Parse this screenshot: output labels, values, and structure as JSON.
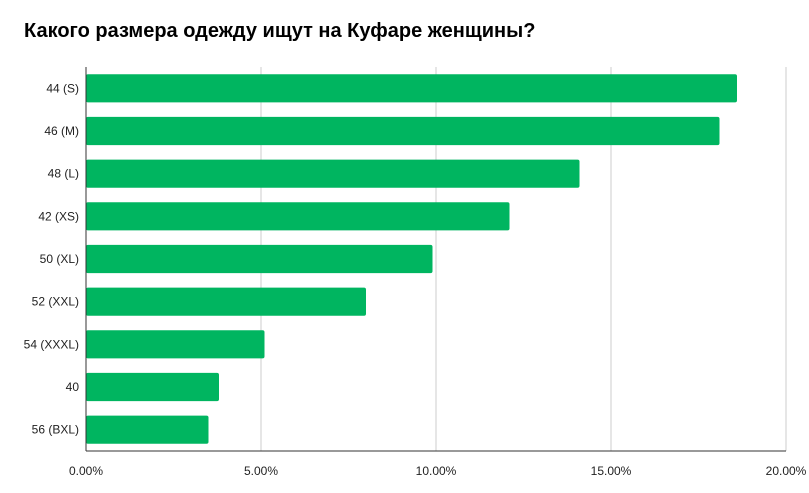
{
  "chart_data": {
    "type": "bar",
    "orientation": "horizontal",
    "title": "Какого размера одежду ищут на Куфаре женщины?",
    "categories": [
      "44 (S)",
      "46 (M)",
      "48 (L)",
      "42 (XS)",
      "50 (XL)",
      "52 (XXL)",
      "54 (XXXL)",
      "40",
      "56 (BXL)"
    ],
    "values": [
      18.6,
      18.1,
      14.1,
      12.1,
      9.9,
      8.0,
      5.1,
      3.8,
      3.5
    ],
    "xlim": [
      0,
      20
    ],
    "xticks": [
      "0.00%",
      "5.00%",
      "10.00%",
      "15.00%",
      "20.00%"
    ],
    "grid": "vertical",
    "legend": "none",
    "bar_color": "#00b560",
    "grid_color": "#cccccc",
    "axis_color": "#333333"
  }
}
